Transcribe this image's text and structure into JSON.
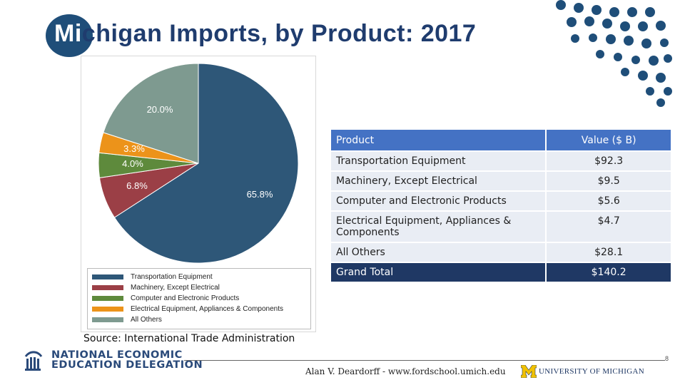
{
  "slide": {
    "title_highlight": "Mi",
    "title_rest": "chigan Imports, by Product: 2017",
    "source": "Source: International Trade Administration",
    "page_number": "8",
    "author": "Alan V. Deardorff - www.fordschool.umich.edu",
    "nee_line1": "NATIONAL ECONOMIC",
    "nee_line2": "EDUCATION DELEGATION",
    "um_letter": "M",
    "um_text": "UNIVERSITY OF MICHIGAN"
  },
  "colors": {
    "title": "#1f3c6e",
    "table_header": "#4472c4",
    "table_row": "#e9edf4",
    "table_total": "#1f3864"
  },
  "chart_data": {
    "type": "pie",
    "title": "",
    "slices": [
      {
        "label": "Transportation Equipment",
        "value": 65.8,
        "display": "65.8%",
        "color": "#2e5778"
      },
      {
        "label": "Machinery, Except Electrical",
        "value": 6.8,
        "display": "6.8%",
        "color": "#9b3f46"
      },
      {
        "label": "Computer and Electronic Products",
        "value": 4.0,
        "display": "4.0%",
        "color": "#5e8a3c"
      },
      {
        "label": "Electrical Equipment, Appliances & Components",
        "value": 3.3,
        "display": "3.3%",
        "color": "#ec931a"
      },
      {
        "label": "All Others",
        "value": 20.0,
        "display": "20.0%",
        "color": "#7e9a90"
      }
    ],
    "legend_position": "bottom"
  },
  "table": {
    "headers": [
      "Product",
      "Value ($ B)"
    ],
    "rows": [
      {
        "product": "Transportation Equipment",
        "value": "$92.3"
      },
      {
        "product": "Machinery, Except Electrical",
        "value": "$9.5"
      },
      {
        "product": "Computer and Electronic Products",
        "value": "$5.6"
      },
      {
        "product": "Electrical Equipment, Appliances & Components",
        "value": "$4.7"
      },
      {
        "product": "All Others",
        "value": "$28.1"
      }
    ],
    "total": {
      "product": "Grand Total",
      "value": "$140.2"
    }
  }
}
